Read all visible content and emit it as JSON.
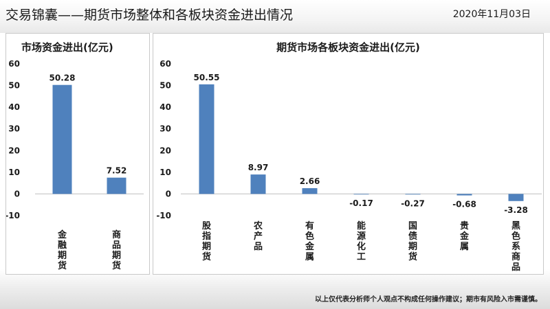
{
  "page": {
    "title": "交易锦囊——期货市场整体和各板块资金进出情况",
    "date": "2020年11月03日",
    "disclaimer": "以上仅代表分析师个人观点不构成任何操作建议；期市有风险入市需谨慎。"
  },
  "colors": {
    "bar": "#4f81bd",
    "axis": "#bfbfbf",
    "text": "#1a1a1a"
  },
  "chart_data": [
    {
      "type": "bar",
      "title": "市场资金进出(亿元)",
      "categories": [
        "金融期货",
        "商品期货"
      ],
      "values": [
        50.28,
        7.52
      ],
      "value_labels": [
        "50.28",
        "7.52"
      ],
      "ylim": [
        -10,
        60
      ],
      "yticks": [
        -10,
        0,
        10,
        20,
        30,
        40,
        50,
        60
      ],
      "grid": false,
      "legend": "none"
    },
    {
      "type": "bar",
      "title": "期货市场各板块资金进出(亿元)",
      "categories": [
        "股指期货",
        "农产品",
        "有色金属",
        "能源化工",
        "国债期货",
        "贵金属",
        "黑色系商品"
      ],
      "values": [
        50.55,
        8.97,
        2.66,
        -0.17,
        -0.27,
        -0.68,
        -3.28
      ],
      "value_labels": [
        "50.55",
        "8.97",
        "2.66",
        "-0.17",
        "-0.27",
        "-0.68",
        "-3.28"
      ],
      "ylim": [
        -10,
        60
      ],
      "yticks": [
        -10,
        0,
        10,
        20,
        30,
        40,
        50,
        60
      ],
      "grid": false,
      "legend": "none"
    }
  ]
}
